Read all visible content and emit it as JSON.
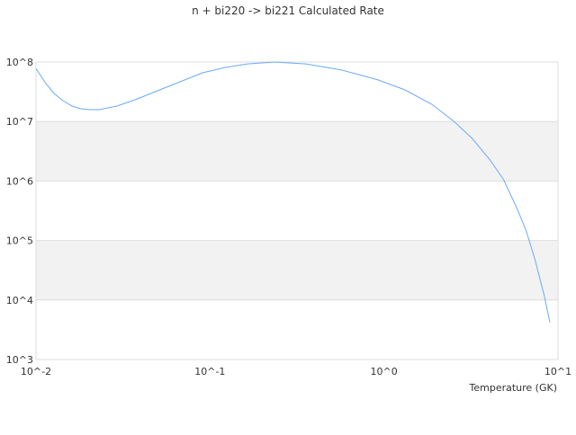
{
  "chart_data": {
    "type": "line",
    "title": "n + bi220 -> bi221 Calculated Rate",
    "xlabel": "Temperature (GK)",
    "ylabel": "",
    "x_scale": "log",
    "y_scale": "log",
    "xlim": [
      0.01,
      10
    ],
    "ylim": [
      1000,
      100000000
    ],
    "x_ticks": [
      {
        "value": 0.01,
        "label": "10^-2"
      },
      {
        "value": 0.1,
        "label": "10^-1"
      },
      {
        "value": 1,
        "label": "10^0"
      },
      {
        "value": 10,
        "label": "10^1"
      }
    ],
    "y_ticks": [
      {
        "value": 1000,
        "label": "10^3"
      },
      {
        "value": 10000,
        "label": "10^4"
      },
      {
        "value": 100000,
        "label": "10^5"
      },
      {
        "value": 1000000,
        "label": "10^6"
      },
      {
        "value": 10000000,
        "label": "10^7"
      },
      {
        "value": 100000000,
        "label": "10^8"
      }
    ],
    "grid": true,
    "alternating_bands": true,
    "line_color": "#6aaaf5",
    "band_color": "#f2f2f2",
    "series": [
      {
        "x": [
          0.01,
          0.0113,
          0.0127,
          0.0143,
          0.0161,
          0.0181,
          0.0204,
          0.023,
          0.0292,
          0.0371,
          0.0499,
          0.0672,
          0.0905,
          0.122,
          0.164,
          0.235,
          0.355,
          0.574,
          0.924,
          1.32,
          1.88,
          2.53,
          3.21,
          4.07,
          4.87,
          5.83,
          6.57,
          7.4,
          8.35,
          8.98
        ],
        "y": [
          78000000.0,
          45000000.0,
          29600000.0,
          22400000.0,
          18200000.0,
          16400000.0,
          15800000.0,
          15800000.0,
          18200000.0,
          23200000.0,
          32900000.0,
          46600000.0,
          65900000.0,
          81000000.0,
          93000000.0,
          100000000.0,
          93000000.0,
          73000000.0,
          50000000.0,
          34000000.0,
          19500000.0,
          10000000.0,
          5200000.0,
          2260000.0,
          1050000.0,
          340000.0,
          145000.0,
          46000.0,
          11500.0,
          4200.0
        ]
      }
    ]
  }
}
